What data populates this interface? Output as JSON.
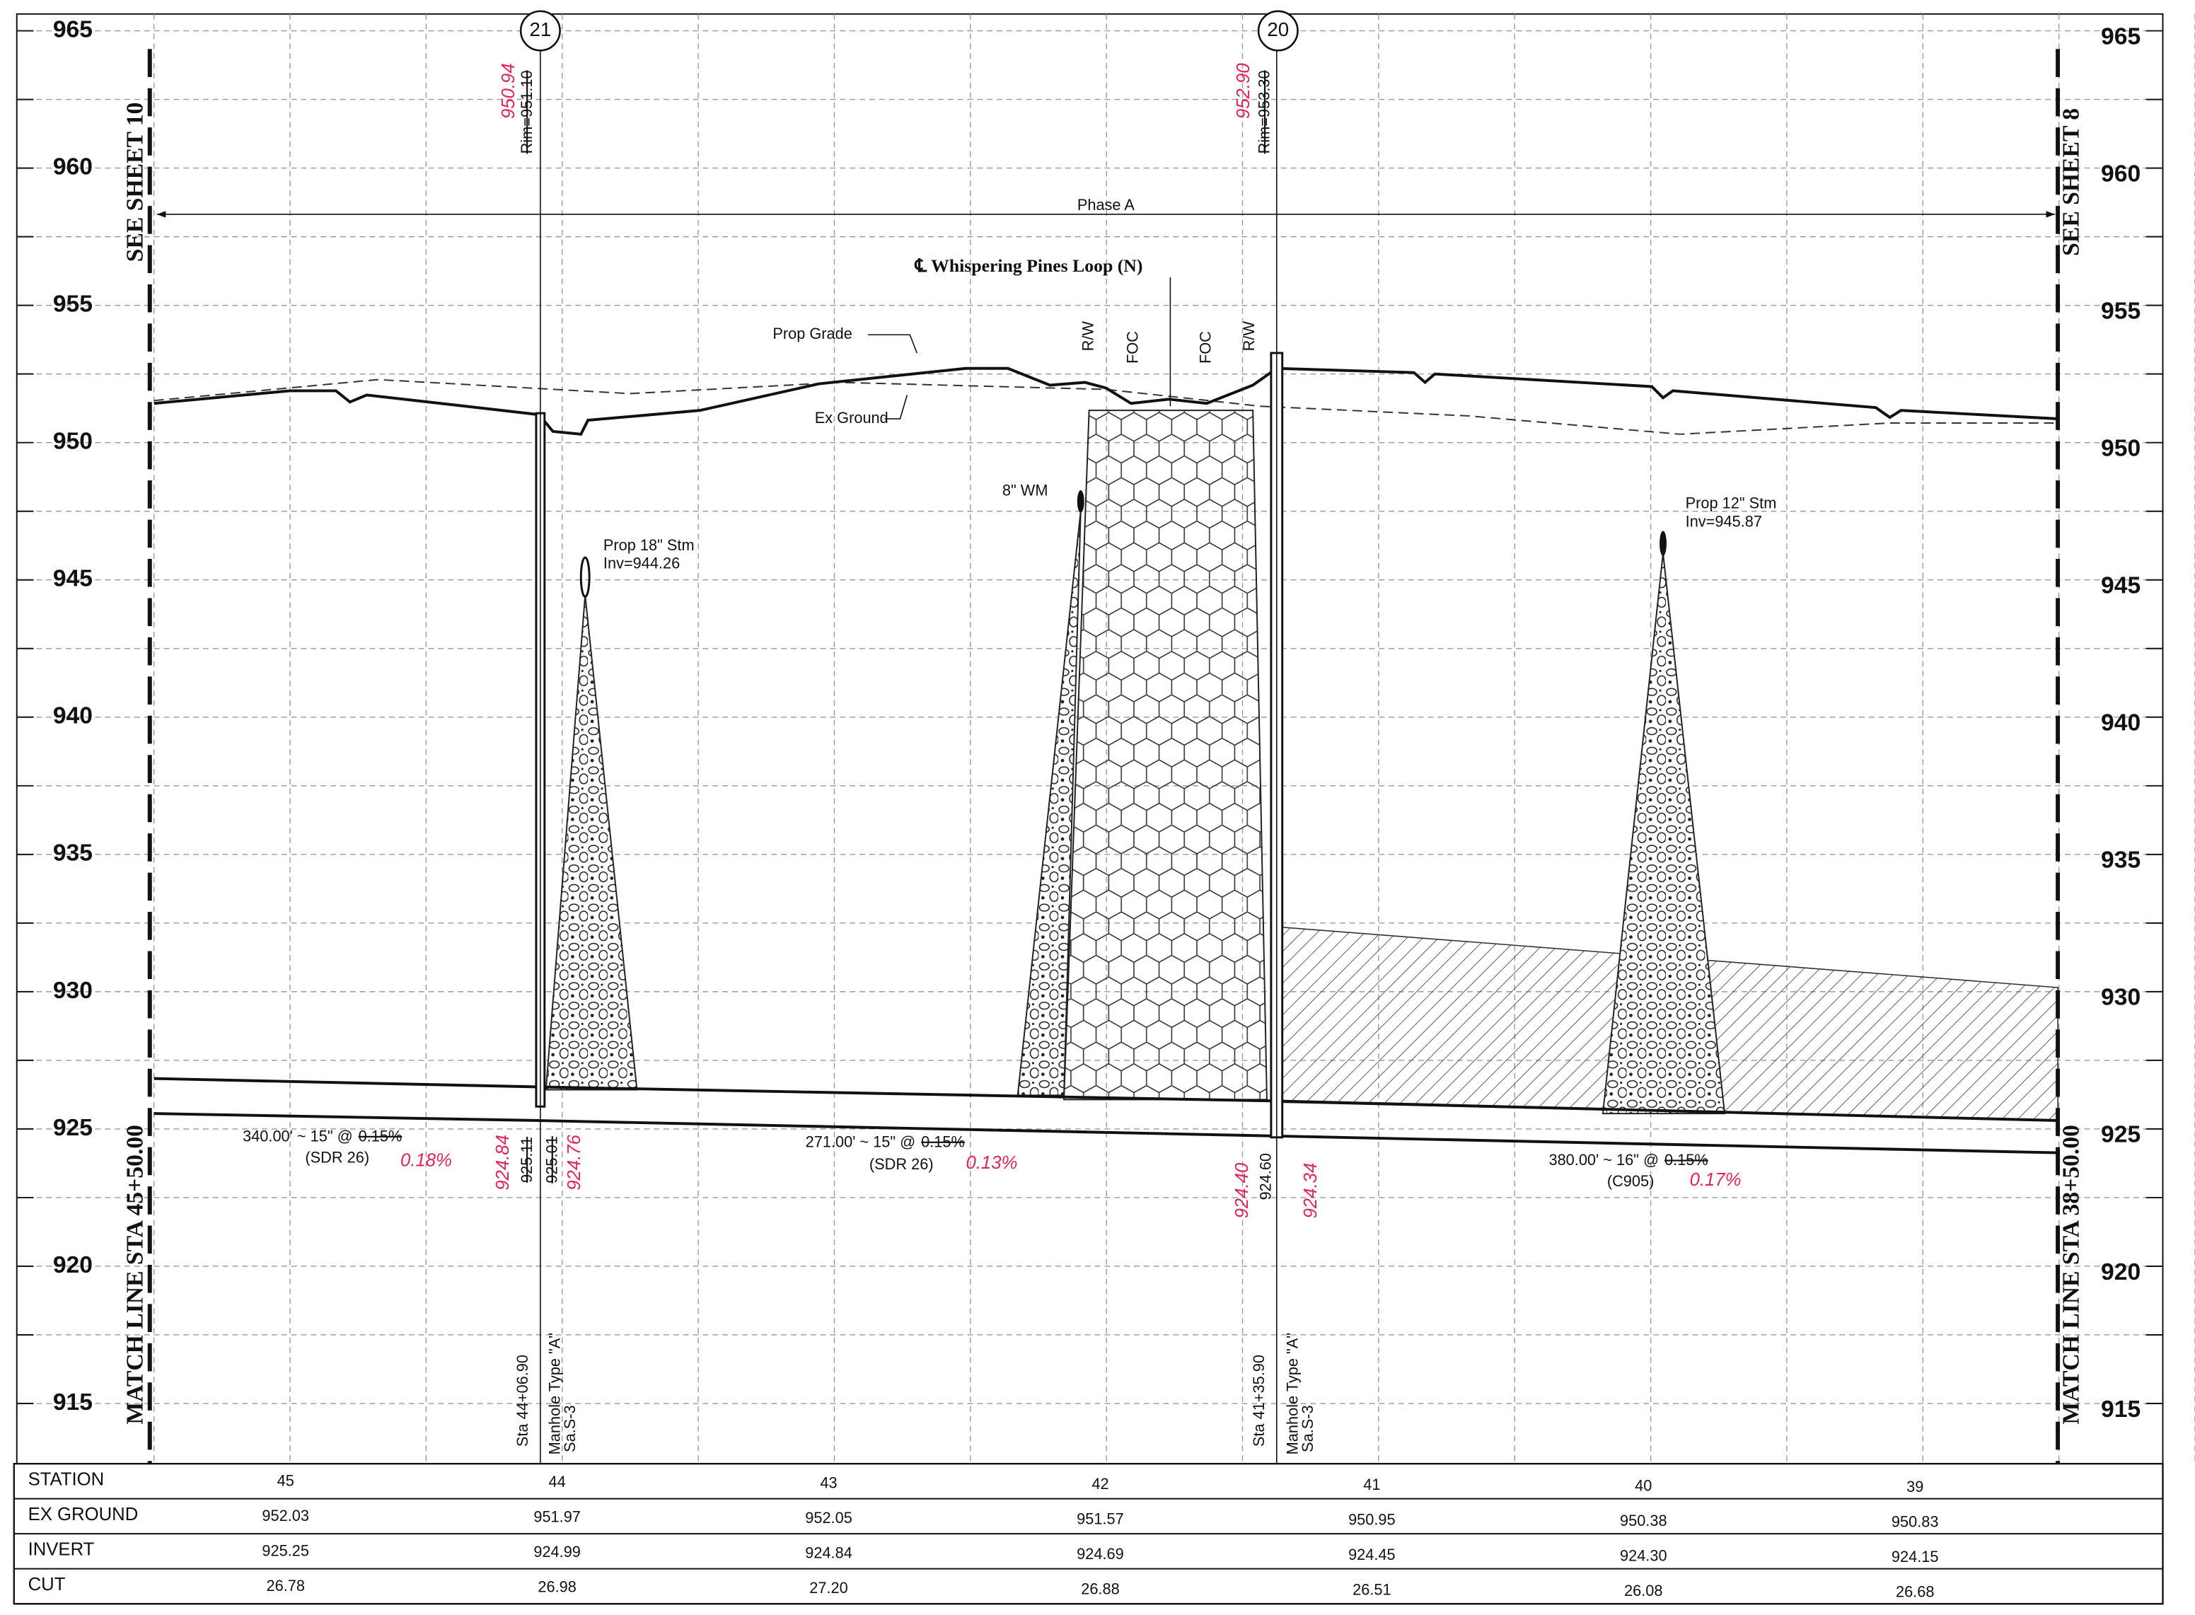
{
  "left_axis": {
    "labels": [
      "965",
      "960",
      "955",
      "950",
      "945",
      "940",
      "935",
      "930",
      "925",
      "920",
      "915"
    ],
    "sheet": "SEE SHEET 10",
    "match_line": "MATCH LINE STA 45+50.00"
  },
  "right_axis": {
    "labels": [
      "965",
      "960",
      "955",
      "950",
      "945",
      "940",
      "935",
      "930",
      "925",
      "920",
      "915"
    ],
    "sheet": "SEE SHEET 8",
    "match_line": "MATCH LINE STA 38+50.00"
  },
  "phase": "Phase A",
  "centerline": "℄ Whispering Pines Loop (N)",
  "grade_labels": {
    "prop_grade": "Prop Grade",
    "ex_ground": "Ex Ground"
  },
  "row_labels": [
    "R/W",
    "FOC",
    "FOC",
    "R/W"
  ],
  "utilities": {
    "water_main": "8\" WM",
    "storm_18": {
      "name": "Prop 18\" Stm",
      "inv": "Inv=944.26"
    },
    "storm_12": {
      "name": "Prop 12\" Stm",
      "inv": "Inv=945.87"
    }
  },
  "manholes": [
    {
      "id": "21",
      "rim": "Rim=951.10",
      "rim_revised": "950.94",
      "station": "Sta 44+06.90",
      "type": "Manhole Type \"A\"",
      "sheet": "Sa.S-3",
      "inverts": [
        "925.11",
        "925.01"
      ],
      "inverts_revised": [
        "924.84",
        "924.76"
      ]
    },
    {
      "id": "20",
      "rim": "Rim=953.30",
      "rim_revised": "952.90",
      "station": "Sta 41+35.90",
      "type": "Manhole Type \"A\"",
      "sheet": "Sa.S-3",
      "inverts": [
        "924.60"
      ],
      "inverts_revised": [
        "924.40",
        "924.34"
      ]
    }
  ],
  "pipes": [
    {
      "text": "340.00' ~ 15\" @",
      "slope": "0.15%",
      "material": "(SDR 26)",
      "slope_revised": "0.18%"
    },
    {
      "text": "271.00' ~ 15\" @",
      "slope": "0.15%",
      "material": "(SDR 26)",
      "slope_revised": "0.13%"
    },
    {
      "text": "380.00' ~ 16\" @",
      "slope": "0.15%",
      "material": "(C905)",
      "slope_revised": "0.17%"
    }
  ],
  "table": {
    "rows": [
      {
        "label": "STATION",
        "values": [
          "45",
          "44",
          "43",
          "42",
          "41",
          "40",
          "39"
        ]
      },
      {
        "label": "EX GROUND",
        "values": [
          "952.03",
          "951.97",
          "952.05",
          "951.57",
          "950.95",
          "950.38",
          "950.83"
        ]
      },
      {
        "label": "INVERT",
        "values": [
          "925.25",
          "924.99",
          "924.84",
          "924.69",
          "924.45",
          "924.30",
          "924.15"
        ]
      },
      {
        "label": "CUT",
        "values": [
          "26.78",
          "26.98",
          "27.20",
          "26.88",
          "26.51",
          "26.08",
          "26.68"
        ]
      }
    ]
  }
}
